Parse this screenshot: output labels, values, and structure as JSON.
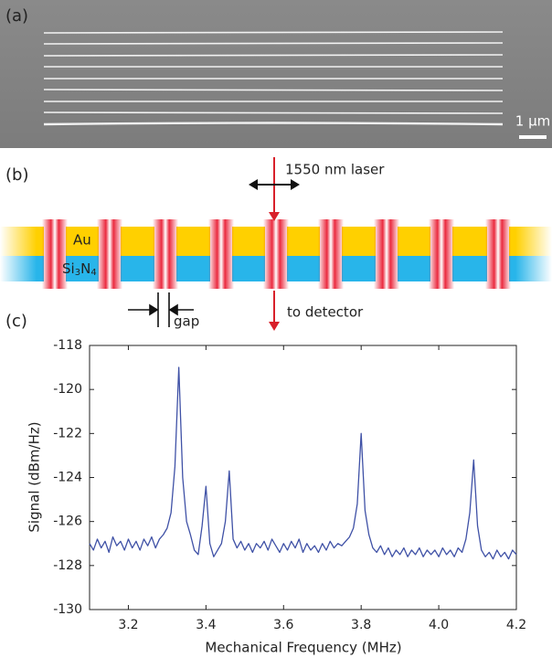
{
  "panels": {
    "a": {
      "label": "(a)",
      "scale_bar": "1 µm"
    },
    "b": {
      "label": "(b)",
      "laser": "1550 nm laser",
      "top_layer": "Au",
      "bottom_layer": [
        "Si",
        "3",
        "N",
        "4"
      ],
      "gap": "gap",
      "detector": "to detector"
    },
    "c": {
      "label": "(c)"
    }
  },
  "chart_data": {
    "type": "line",
    "xlabel": "Mechanical Frequency (MHz)",
    "ylabel": "Signal (dBm/Hz)",
    "color": "#3f51a6",
    "xlim": [
      3.1,
      4.2
    ],
    "ylim": [
      -130,
      -118
    ],
    "xticks": [
      3.2,
      3.4,
      3.6,
      3.8,
      {
        "value": 4,
        "label": "4.0"
      },
      4.2
    ],
    "yticks": [
      -118,
      -120,
      -122,
      -124,
      -126,
      -128,
      -130
    ],
    "x": [
      3.1,
      3.11,
      3.12,
      3.13,
      3.14,
      3.15,
      3.16,
      3.17,
      3.18,
      3.19,
      3.2,
      3.21,
      3.22,
      3.23,
      3.24,
      3.25,
      3.26,
      3.27,
      3.28,
      3.29,
      3.3,
      3.31,
      3.32,
      3.33,
      3.34,
      3.35,
      3.36,
      3.37,
      3.38,
      3.39,
      3.4,
      3.41,
      3.42,
      3.43,
      3.44,
      3.45,
      3.46,
      3.47,
      3.48,
      3.49,
      3.5,
      3.51,
      3.52,
      3.53,
      3.54,
      3.55,
      3.56,
      3.57,
      3.58,
      3.59,
      3.6,
      3.61,
      3.62,
      3.63,
      3.64,
      3.65,
      3.66,
      3.67,
      3.68,
      3.69,
      3.7,
      3.71,
      3.72,
      3.73,
      3.74,
      3.75,
      3.76,
      3.77,
      3.78,
      3.79,
      3.8,
      3.81,
      3.82,
      3.83,
      3.84,
      3.85,
      3.86,
      3.87,
      3.88,
      3.89,
      3.9,
      3.91,
      3.92,
      3.93,
      3.94,
      3.95,
      3.96,
      3.97,
      3.98,
      3.99,
      4.0,
      4.01,
      4.02,
      4.03,
      4.04,
      4.05,
      4.06,
      4.07,
      4.08,
      4.09,
      4.1,
      4.11,
      4.12,
      4.13,
      4.14,
      4.15,
      4.16,
      4.17,
      4.18,
      4.19,
      4.2
    ],
    "values": [
      -127.0,
      -127.3,
      -126.8,
      -127.2,
      -126.9,
      -127.4,
      -126.7,
      -127.1,
      -126.9,
      -127.3,
      -126.8,
      -127.2,
      -126.9,
      -127.3,
      -126.8,
      -127.1,
      -126.7,
      -127.2,
      -126.8,
      -126.6,
      -126.3,
      -125.6,
      -123.5,
      -119.0,
      -124.0,
      -126.0,
      -126.6,
      -127.3,
      -127.5,
      -126.2,
      -124.4,
      -127.0,
      -127.6,
      -127.3,
      -127.0,
      -126.0,
      -123.7,
      -126.8,
      -127.2,
      -126.9,
      -127.3,
      -127.0,
      -127.4,
      -127.0,
      -127.2,
      -126.9,
      -127.3,
      -126.8,
      -127.1,
      -127.4,
      -127.0,
      -127.3,
      -126.9,
      -127.2,
      -126.8,
      -127.4,
      -127.0,
      -127.3,
      -127.1,
      -127.4,
      -127.0,
      -127.3,
      -126.9,
      -127.2,
      -127.0,
      -127.1,
      -126.9,
      -126.7,
      -126.3,
      -125.2,
      -122.0,
      -125.5,
      -126.6,
      -127.2,
      -127.4,
      -127.1,
      -127.5,
      -127.2,
      -127.6,
      -127.3,
      -127.5,
      -127.2,
      -127.6,
      -127.3,
      -127.5,
      -127.2,
      -127.6,
      -127.3,
      -127.5,
      -127.3,
      -127.6,
      -127.2,
      -127.5,
      -127.3,
      -127.6,
      -127.2,
      -127.4,
      -126.8,
      -125.6,
      -123.2,
      -126.2,
      -127.3,
      -127.6,
      -127.4,
      -127.7,
      -127.3,
      -127.6,
      -127.4,
      -127.7,
      -127.3,
      -127.5
    ]
  }
}
